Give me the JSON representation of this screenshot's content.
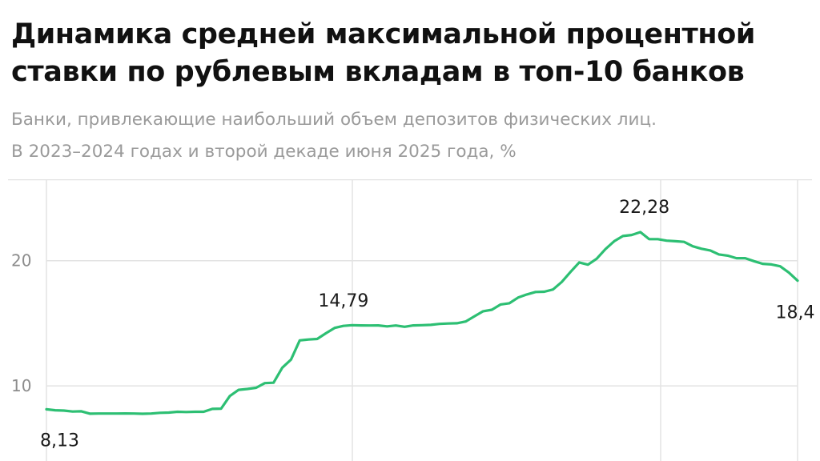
{
  "title_line1": "Динамика средней максимальной процентной",
  "title_line2": "ставки по рублевым вкладам в топ-10 банков",
  "subtitle_line1": "Банки, привлекающие наибольший объем депозитов физических лиц.",
  "subtitle_line2": "В 2023–2024 годах и второй декаде июня 2025 года, %",
  "colors": {
    "line": "#2dbf73",
    "grid": "#e3e3e3",
    "text": "#111111",
    "muted": "#9a9a9a"
  },
  "chart_data": {
    "type": "line",
    "title": "Динамика средней максимальной процентной ставки по рублевым вкладам в топ-10 банков",
    "subtitle": "Банки, привлекающие наибольший объем депозитов физических лиц. В 2023–2024 годах и второй декаде июня 2025 года, %",
    "xlabel": "",
    "ylabel": "",
    "ylim": [
      4,
      26.5
    ],
    "yticks": [
      10,
      20
    ],
    "ytick_labels": [
      "10",
      "20"
    ],
    "grid": true,
    "series": [
      {
        "values": [
          8.13,
          8.05,
          8.03,
          7.95,
          7.97,
          7.78,
          7.79,
          7.79,
          7.79,
          7.8,
          7.79,
          7.77,
          7.79,
          7.85,
          7.87,
          7.93,
          7.91,
          7.93,
          7.93,
          8.16,
          8.18,
          9.19,
          9.68,
          9.75,
          9.85,
          10.22,
          10.25,
          11.45,
          12.1,
          13.63,
          13.7,
          13.75,
          14.2,
          14.63,
          14.79,
          14.85,
          14.83,
          14.82,
          14.83,
          14.75,
          14.82,
          14.72,
          14.83,
          14.85,
          14.87,
          14.95,
          14.98,
          15.0,
          15.14,
          15.55,
          15.96,
          16.08,
          16.5,
          16.6,
          17.05,
          17.3,
          17.5,
          17.52,
          17.7,
          18.3,
          19.1,
          19.86,
          19.68,
          20.15,
          20.92,
          21.55,
          21.97,
          22.05,
          22.28,
          21.72,
          21.72,
          21.6,
          21.55,
          21.5,
          21.15,
          20.95,
          20.82,
          20.5,
          20.4,
          20.2,
          20.2,
          19.96,
          19.75,
          19.7,
          19.55,
          19.05,
          18.4
        ]
      }
    ],
    "annotations": [
      {
        "text": "8,13",
        "point": 0
      },
      {
        "text": "14,79",
        "point": 34
      },
      {
        "text": "22,28",
        "point": 68
      },
      {
        "text": "18,4",
        "point": 86
      }
    ]
  }
}
